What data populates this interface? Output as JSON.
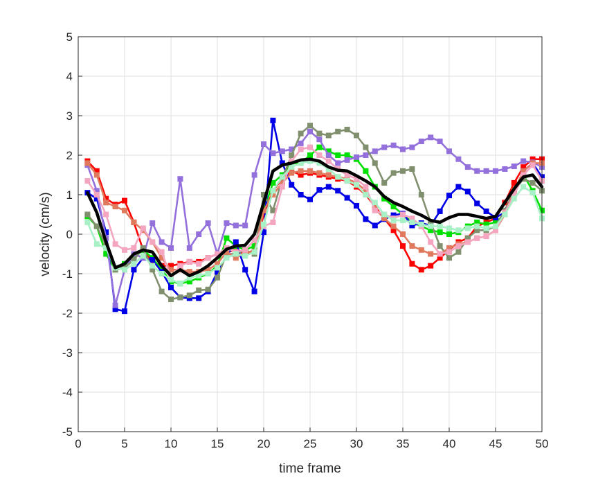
{
  "chart_data": {
    "type": "line",
    "title": "",
    "xlabel": "time frame",
    "ylabel": "velocity (cm/s)",
    "xlim": [
      0,
      50
    ],
    "ylim": [
      -5,
      5
    ],
    "xticks": [
      0,
      5,
      10,
      15,
      20,
      25,
      30,
      35,
      40,
      45,
      50
    ],
    "yticks": [
      -5,
      -4,
      -3,
      -2,
      -1,
      0,
      1,
      2,
      3,
      4,
      5
    ],
    "x": [
      1,
      2,
      3,
      4,
      5,
      6,
      7,
      8,
      9,
      10,
      11,
      12,
      13,
      14,
      15,
      16,
      17,
      18,
      19,
      20,
      21,
      22,
      23,
      24,
      25,
      26,
      27,
      28,
      29,
      30,
      31,
      32,
      33,
      34,
      35,
      36,
      37,
      38,
      39,
      40,
      41,
      42,
      43,
      44,
      45,
      46,
      47,
      48,
      49,
      50
    ],
    "grid": true,
    "legend": "none",
    "series": [
      {
        "color": "#ff0000",
        "marker": "square",
        "values": [
          1.85,
          1.6,
          0.9,
          0.75,
          0.85,
          0.3,
          -0.4,
          -0.7,
          -0.8,
          -0.8,
          -0.75,
          -0.7,
          -0.7,
          -0.6,
          -0.5,
          -0.45,
          -0.4,
          -0.5,
          -0.4,
          0.5,
          1.1,
          1.4,
          1.6,
          1.5,
          1.55,
          1.5,
          1.45,
          1.4,
          1.35,
          1.2,
          1.0,
          0.7,
          0.4,
          0.1,
          -0.3,
          -0.75,
          -0.9,
          -0.8,
          -0.6,
          -0.4,
          -0.2,
          -0.1,
          0.2,
          0.3,
          0.4,
          0.8,
          1.3,
          1.7,
          1.9,
          1.9
        ]
      },
      {
        "color": "#00e000",
        "marker": "square",
        "values": [
          0.45,
          0.2,
          -0.5,
          -0.9,
          -0.75,
          -0.6,
          -0.4,
          -0.6,
          -0.9,
          -1.2,
          -1.25,
          -1.2,
          -1.1,
          -1.0,
          -0.8,
          -0.1,
          -0.3,
          -0.4,
          -0.3,
          0.6,
          1.3,
          1.5,
          1.8,
          1.8,
          2.0,
          2.2,
          2.1,
          2.0,
          2.0,
          1.9,
          1.6,
          1.2,
          0.9,
          0.7,
          0.5,
          0.3,
          0.2,
          0.1,
          0.05,
          0.0,
          0.05,
          0.2,
          0.3,
          0.25,
          0.3,
          0.5,
          1.0,
          1.5,
          1.1,
          0.6
        ]
      },
      {
        "color": "#0000e6",
        "marker": "square",
        "values": [
          1.05,
          0.9,
          0.05,
          -1.9,
          -1.95,
          -0.9,
          -0.6,
          -0.65,
          -0.95,
          -1.35,
          -1.6,
          -1.62,
          -1.62,
          -1.45,
          -0.95,
          -0.55,
          -0.2,
          -0.9,
          -1.45,
          0.05,
          2.88,
          1.8,
          1.25,
          1.0,
          0.88,
          1.12,
          1.2,
          1.1,
          0.92,
          0.72,
          0.38,
          0.22,
          0.38,
          0.48,
          0.52,
          0.22,
          0.28,
          0.22,
          0.58,
          0.98,
          1.2,
          1.08,
          0.78,
          0.58,
          0.42,
          0.55,
          1.05,
          1.6,
          1.8,
          1.45
        ]
      },
      {
        "color": "#9370db",
        "marker": "square",
        "values": [
          1.75,
          1.1,
          -0.1,
          -1.8,
          -0.9,
          -0.5,
          -0.6,
          0.28,
          -0.2,
          -0.35,
          1.4,
          -0.35,
          0.0,
          0.28,
          -0.5,
          0.28,
          0.22,
          0.22,
          1.5,
          2.28,
          2.05,
          2.1,
          2.15,
          2.3,
          2.6,
          2.4,
          2.0,
          1.8,
          1.88,
          1.95,
          2.0,
          2.1,
          2.2,
          2.25,
          2.15,
          2.2,
          2.35,
          2.45,
          2.35,
          2.1,
          1.9,
          1.7,
          1.6,
          1.6,
          1.6,
          1.65,
          1.72,
          1.85,
          1.82,
          1.7
        ]
      },
      {
        "color": "#808f6d",
        "marker": "square",
        "values": [
          0.5,
          0.2,
          -0.3,
          -0.9,
          -0.85,
          -0.65,
          -0.35,
          -0.9,
          -1.45,
          -1.65,
          -1.6,
          -1.55,
          -1.42,
          -1.4,
          -1.1,
          -0.5,
          -0.5,
          -0.4,
          -0.5,
          1.0,
          0.6,
          1.4,
          2.0,
          2.55,
          2.75,
          2.55,
          2.5,
          2.6,
          2.65,
          2.5,
          2.2,
          1.8,
          1.3,
          1.55,
          1.6,
          1.65,
          1.0,
          0.3,
          -0.3,
          -0.6,
          -0.45,
          -0.1,
          0.1,
          0.1,
          0.2,
          0.6,
          1.1,
          1.4,
          1.3,
          1.1
        ]
      },
      {
        "color": "#e07a5f",
        "marker": "square",
        "values": [
          1.8,
          1.5,
          0.8,
          0.7,
          0.6,
          0.3,
          0.1,
          -0.2,
          -0.6,
          -0.9,
          -0.9,
          -0.95,
          -0.95,
          -0.9,
          -0.75,
          -0.45,
          -0.6,
          -0.45,
          -0.45,
          0.6,
          1.0,
          1.3,
          1.55,
          1.6,
          1.6,
          1.55,
          1.5,
          1.45,
          1.4,
          1.3,
          1.1,
          0.65,
          0.4,
          0.2,
          0.0,
          -0.3,
          -0.4,
          -0.5,
          -0.5,
          -0.35,
          -0.25,
          -0.2,
          -0.1,
          -0.05,
          0.1,
          0.5,
          1.1,
          1.6,
          1.8,
          1.8
        ]
      },
      {
        "color": "#f4a6c0",
        "marker": "square",
        "values": [
          1.35,
          1.0,
          0.5,
          -0.25,
          -0.4,
          -0.35,
          0.15,
          -0.2,
          -0.45,
          -1.1,
          -0.8,
          -0.7,
          -0.75,
          -0.6,
          -0.5,
          -0.35,
          -0.45,
          -0.4,
          -0.15,
          0.2,
          0.3,
          1.2,
          1.85,
          2.15,
          2.2,
          2.0,
          1.85,
          1.65,
          1.5,
          1.4,
          1.2,
          0.6,
          0.5,
          0.4,
          0.5,
          0.4,
          0.2,
          -0.2,
          -0.5,
          -0.45,
          -0.3,
          -0.2,
          -0.1,
          -0.05,
          0.1,
          0.55,
          1.0,
          1.5,
          1.75,
          1.35
        ]
      },
      {
        "color": "#a8f0c6",
        "marker": "square",
        "values": [
          0.3,
          -0.25,
          -0.35,
          -0.85,
          -0.9,
          -0.75,
          -0.55,
          -0.8,
          -1.0,
          -1.15,
          -1.25,
          -1.1,
          -1.05,
          -1.0,
          -0.85,
          -0.6,
          -0.5,
          -0.55,
          -0.45,
          0.25,
          1.1,
          1.45,
          1.7,
          1.8,
          1.85,
          1.8,
          1.65,
          1.45,
          1.35,
          1.25,
          1.0,
          0.8,
          0.5,
          0.35,
          0.35,
          0.3,
          0.25,
          0.2,
          0.2,
          0.15,
          0.1,
          0.15,
          0.2,
          0.15,
          0.2,
          0.5,
          0.9,
          1.2,
          1.05,
          0.4
        ]
      },
      {
        "color": "#000000",
        "marker": "none",
        "width": 4.5,
        "values": [
          1.05,
          0.55,
          -0.2,
          -0.85,
          -0.75,
          -0.5,
          -0.4,
          -0.45,
          -0.8,
          -1.05,
          -0.9,
          -1.05,
          -0.95,
          -0.8,
          -0.6,
          -0.38,
          -0.3,
          -0.28,
          0.0,
          0.8,
          1.6,
          1.75,
          1.8,
          1.88,
          1.9,
          1.85,
          1.7,
          1.62,
          1.6,
          1.48,
          1.35,
          1.2,
          0.95,
          0.8,
          0.7,
          0.58,
          0.48,
          0.35,
          0.3,
          0.42,
          0.5,
          0.5,
          0.45,
          0.4,
          0.45,
          0.8,
          1.15,
          1.45,
          1.5,
          1.2
        ]
      }
    ]
  }
}
